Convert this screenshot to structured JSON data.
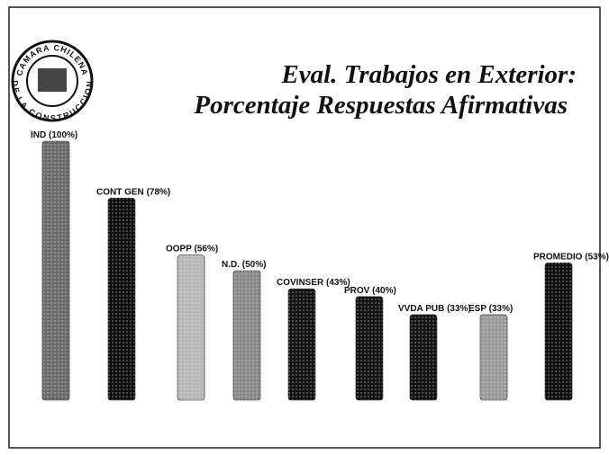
{
  "logo": {
    "top": "CAMARA CHILENA",
    "bottom": "DE LA CONSTRUCCION"
  },
  "chart_data": {
    "type": "bar",
    "title": "Eval. Trabajos en Exterior:",
    "subtitle": "Porcentaje Respuestas Afirmativas",
    "categories": [
      "IND",
      "CONT GEN",
      "OOPP",
      "N.D.",
      "COVINSER",
      "PROV",
      "VVDA PUB",
      "ESP",
      "PROMEDIO"
    ],
    "values": [
      100,
      78,
      56,
      50,
      43,
      40,
      33,
      33,
      53
    ],
    "value_labels": [
      "(100%)",
      "(78%)",
      "(56%)",
      "(50%)",
      "(43%)",
      "(40%)",
      "(33%)",
      "(33%)",
      "(53%)"
    ],
    "colors": [
      "#6a6a6a",
      "#111111",
      "#b8b8b8",
      "#8a8a8a",
      "#151515",
      "#151515",
      "#151515",
      "#9a9a9a",
      "#111111"
    ]
  }
}
